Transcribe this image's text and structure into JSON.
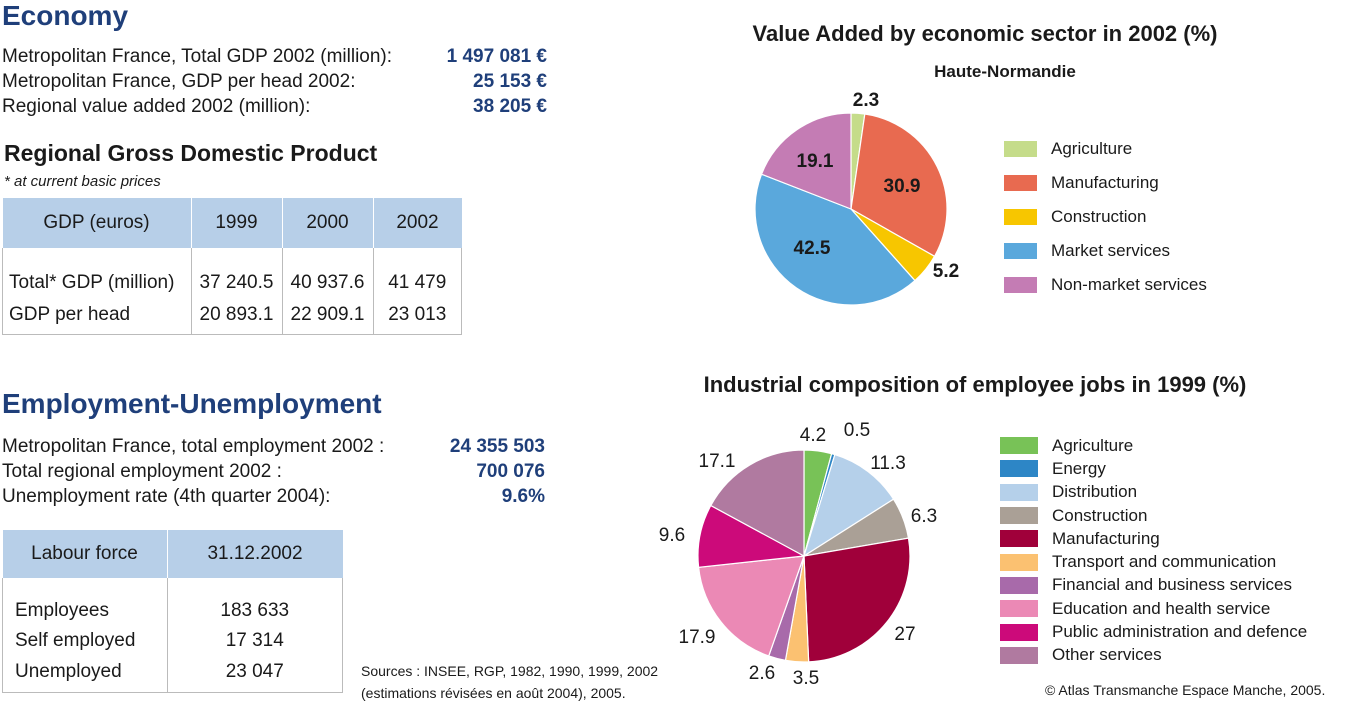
{
  "economy": {
    "heading": "Economy",
    "stats": [
      {
        "label": "Metropolitan France, Total GDP 2002 (million):",
        "value": "1 497 081 €"
      },
      {
        "label": "Metropolitan France, GDP per head 2002:",
        "value": "25 153 €"
      },
      {
        "label": "Regional value added 2002 (million):",
        "value": "38 205 €"
      }
    ]
  },
  "gdp_table": {
    "heading": "Regional Gross Domestic Product",
    "note": "* at current basic prices",
    "columns": [
      "GDP (euros)",
      "1999",
      "2000",
      "2002"
    ],
    "rows": [
      [
        "Total* GDP (million)",
        "37 240.5",
        "40 937.6",
        "41 479"
      ],
      [
        "GDP per head",
        "20 893.1",
        "22 909.1",
        "23 013"
      ]
    ]
  },
  "employment": {
    "heading": "Employment-Unemployment",
    "stats": [
      {
        "label": "Metropolitan France, total employment 2002 :",
        "value": "24 355 503"
      },
      {
        "label": "Total regional employment 2002 :",
        "value": "700 076"
      },
      {
        "label": "Unemployment rate (4th quarter 2004):",
        "value": "9.6%"
      }
    ]
  },
  "labour_table": {
    "columns": [
      "Labour force",
      "31.12.2002"
    ],
    "rows": [
      [
        "Employees",
        "183 633"
      ],
      [
        "Self employed",
        "17 314"
      ],
      [
        "Unemployed",
        "23 047"
      ]
    ]
  },
  "sources": {
    "line1": "Sources : INSEE, RGP, 1982, 1990, 1999, 2002",
    "line2": "(estimations révisées en août 2004), 2005."
  },
  "copyright": "© Atlas Transmanche Espace Manche, 2005.",
  "colors": {
    "heading_blue": "#1f3f7a",
    "table_header_bg": "#b7cfe8"
  },
  "chart_data": [
    {
      "type": "pie",
      "title": "Value Added by economic sector in 2002 (%)",
      "subtitle": "Haute-Normandie",
      "labels": [
        "Agriculture",
        "Manufacturing",
        "Construction",
        "Market services",
        "Non-market services"
      ],
      "values": [
        2.3,
        30.9,
        5.2,
        42.5,
        19.1
      ],
      "value_labels": [
        "2.3",
        "30.9",
        "5.2",
        "42.5",
        "19.1"
      ],
      "colors": [
        "#c5dc8a",
        "#e86a50",
        "#f7c600",
        "#5aa8dc",
        "#c47cb4"
      ],
      "legend": "right"
    },
    {
      "type": "pie",
      "title": "Industrial composition of employee jobs in 1999 (%)",
      "labels": [
        "Agriculture",
        "Energy",
        "Distribution",
        "Construction",
        "Manufacturing",
        "Transport and communication",
        "Financial and business services",
        "Education and health service",
        "Public administration and defence",
        "Other services"
      ],
      "values": [
        4.2,
        0.5,
        11.3,
        6.3,
        27,
        3.5,
        2.6,
        17.9,
        9.6,
        17.1
      ],
      "value_labels": [
        "4.2",
        "0.5",
        "11.3",
        "6.3",
        "27",
        "3.5",
        "2.6",
        "17.9",
        "9.6",
        "17.1"
      ],
      "colors": [
        "#78c257",
        "#2d86c6",
        "#b5d0ea",
        "#aaa096",
        "#a0003a",
        "#fbc171",
        "#a86aaa",
        "#eb89b5",
        "#cc0a7a",
        "#b07aa0"
      ],
      "legend": "right"
    }
  ]
}
